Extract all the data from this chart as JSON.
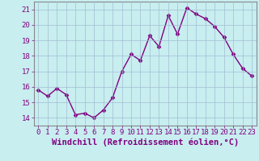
{
  "x": [
    0,
    1,
    2,
    3,
    4,
    5,
    6,
    7,
    8,
    9,
    10,
    11,
    12,
    13,
    14,
    15,
    16,
    17,
    18,
    19,
    20,
    21,
    22,
    23
  ],
  "y": [
    15.8,
    15.4,
    15.9,
    15.5,
    14.2,
    14.3,
    14.0,
    14.5,
    15.3,
    17.0,
    18.1,
    17.7,
    19.3,
    18.6,
    20.6,
    19.4,
    21.1,
    20.7,
    20.4,
    19.9,
    19.2,
    18.1,
    17.2,
    16.7
  ],
  "line_color": "#800080",
  "marker": "D",
  "marker_size": 2.5,
  "bg_color": "#c8eef0",
  "grid_color": "#a0b8d0",
  "xlabel": "Windchill (Refroidissement éolien,°C)",
  "xlabel_color": "#800080",
  "tick_color": "#800080",
  "axis_color": "#888888",
  "ylim": [
    13.5,
    21.5
  ],
  "xlim": [
    -0.5,
    23.5
  ],
  "yticks": [
    14,
    15,
    16,
    17,
    18,
    19,
    20,
    21
  ],
  "xticks": [
    0,
    1,
    2,
    3,
    4,
    5,
    6,
    7,
    8,
    9,
    10,
    11,
    12,
    13,
    14,
    15,
    16,
    17,
    18,
    19,
    20,
    21,
    22,
    23
  ],
  "tick_fontsize": 6.5,
  "xlabel_fontsize": 7.5,
  "linewidth": 1.0
}
